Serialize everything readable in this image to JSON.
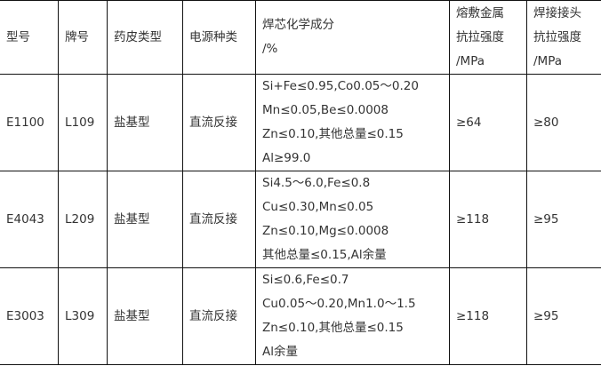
{
  "headers": [
    {
      "lines": [
        "型号"
      ]
    },
    {
      "lines": [
        "牌号"
      ]
    },
    {
      "lines": [
        "药皮类型"
      ]
    },
    {
      "lines": [
        "电源种类"
      ]
    },
    {
      "lines": [
        "焊芯化学成分",
        "/%"
      ]
    },
    {
      "lines": [
        "熔敷金属",
        "抗拉强度",
        "/MPa"
      ]
    },
    {
      "lines": [
        "焊接接头",
        "抗拉强度",
        "/MPa"
      ]
    }
  ],
  "rows": [
    {
      "model": "E1100",
      "grade": "L109",
      "coating": "盐基型",
      "power": "直流反接",
      "composition": [
        "Si+Fe≤0.95,Co0.05～0.20",
        "Mn≤0.05,Be≤0.0008",
        "Zn≤0.10,其他总量≤0.15",
        "Al≥99.0"
      ],
      "deposit_strength": "≥64",
      "joint_strength": "≥80"
    },
    {
      "model": "E4043",
      "grade": "L209",
      "coating": "盐基型",
      "power": "直流反接",
      "composition": [
        "Si4.5～6.0,Fe≤0.8",
        "Cu≤0.30,Mn≤0.05",
        "Zn≤0.10,Mg≤0.0008",
        "其他总量≤0.15,Al余量"
      ],
      "deposit_strength": "≥118",
      "joint_strength": "≥95"
    },
    {
      "model": "E3003",
      "grade": "L309",
      "coating": "盐基型",
      "power": "直流反接",
      "composition": [
        "Si≤0.6,Fe≤0.7",
        "Cu0.05～0.20,Mn1.0～1.5",
        "Zn≤0.10,其他总量≤0.15",
        "Al余量"
      ],
      "deposit_strength": "≥118",
      "joint_strength": "≥95"
    }
  ]
}
